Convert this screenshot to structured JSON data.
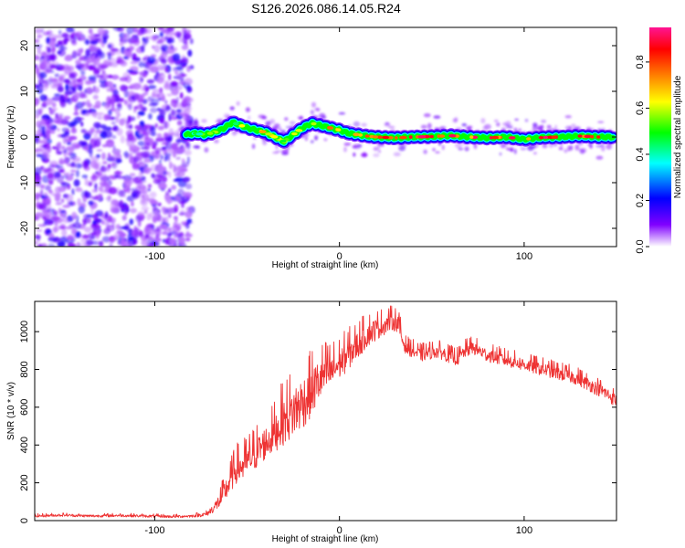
{
  "figure": {
    "title": "S126.2026.086.14.05.R24"
  },
  "chart_data": [
    {
      "type": "heatmap",
      "title": "",
      "xlabel": "Height of straight line (km)",
      "ylabel": "Frequency (Hz)",
      "xlim": [
        -165,
        150
      ],
      "ylim": [
        -24,
        24
      ],
      "xticks": [
        -100,
        0,
        100
      ],
      "yticks": [
        -20,
        -10,
        0,
        10,
        20
      ],
      "colorbar": {
        "label": "Normalized spectral amplitude",
        "range": [
          0.0,
          0.95
        ],
        "ticks": [
          0.0,
          0.2,
          0.4,
          0.6,
          0.8
        ],
        "colormap": [
          "#ffffff",
          "#8000ff",
          "#0000ff",
          "#00ffff",
          "#00ff00",
          "#ffff00",
          "#ff8000",
          "#ff0000",
          "#ff1493"
        ]
      },
      "noise_region_x": [
        -165,
        -80
      ],
      "ridge": {
        "x": [
          -83,
          -78,
          -73,
          -68,
          -63,
          -58,
          -55,
          -50,
          -45,
          -40,
          -35,
          -30,
          -25,
          -20,
          -15,
          -10,
          -5,
          0,
          5,
          10,
          15,
          20,
          30,
          40,
          50,
          60,
          70,
          80,
          90,
          100,
          110,
          120,
          130,
          140,
          148
        ],
        "freq_hz": [
          0.5,
          0.8,
          0.5,
          1.0,
          1.8,
          3.2,
          2.8,
          2.0,
          1.5,
          1.0,
          0.0,
          -1.0,
          0.5,
          2.0,
          3.0,
          2.5,
          2.0,
          1.5,
          0.8,
          0.5,
          0.2,
          0.0,
          -0.2,
          0.0,
          0.1,
          0.3,
          0.0,
          -0.2,
          0.0,
          -0.5,
          -0.1,
          0.0,
          0.2,
          0.0,
          0.0
        ],
        "amplitude": [
          0.4,
          0.5,
          0.55,
          0.6,
          0.6,
          0.55,
          0.6,
          0.65,
          0.65,
          0.7,
          0.6,
          0.6,
          0.65,
          0.7,
          0.7,
          0.75,
          0.75,
          0.8,
          0.8,
          0.8,
          0.85,
          0.85,
          0.85,
          0.9,
          0.9,
          0.9,
          0.9,
          0.9,
          0.92,
          0.92,
          0.92,
          0.92,
          0.92,
          0.9,
          0.9
        ]
      },
      "grid": false
    },
    {
      "type": "line",
      "title": "",
      "xlabel": "Height of straight line (km)",
      "ylabel": "SNR (10 * v/v)",
      "xlim": [
        -165,
        150
      ],
      "ylim": [
        0,
        1160
      ],
      "xticks": [
        -100,
        0,
        100
      ],
      "yticks": [
        0,
        200,
        400,
        600,
        800,
        1000
      ],
      "color": "#ee3333",
      "grid": false,
      "series": [
        {
          "x": [
            -165,
            -150,
            -135,
            -120,
            -105,
            -90,
            -80,
            -72,
            -68,
            -64,
            -60,
            -56,
            -52,
            -48,
            -44,
            -40,
            -36,
            -32,
            -28,
            -24,
            -20,
            -16,
            -12,
            -8,
            -4,
            0,
            4,
            8,
            12,
            16,
            20,
            24,
            28,
            32,
            34,
            36,
            40,
            44,
            48,
            52,
            56,
            60,
            64,
            68,
            72,
            76,
            80,
            84,
            88,
            92,
            96,
            100,
            104,
            108,
            112,
            116,
            120,
            124,
            128,
            132,
            136,
            140,
            144,
            148,
            150
          ],
          "values": [
            25,
            30,
            25,
            28,
            25,
            22,
            25,
            35,
            70,
            120,
            200,
            280,
            300,
            340,
            380,
            420,
            460,
            520,
            560,
            600,
            640,
            680,
            740,
            780,
            800,
            840,
            880,
            920,
            960,
            1000,
            1020,
            1040,
            1060,
            1050,
            960,
            920,
            900,
            880,
            890,
            900,
            890,
            870,
            860,
            900,
            920,
            900,
            880,
            870,
            860,
            850,
            840,
            830,
            820,
            810,
            800,
            790,
            780,
            770,
            760,
            740,
            720,
            700,
            680,
            650,
            640
          ],
          "spread": [
            12,
            12,
            12,
            12,
            12,
            12,
            12,
            20,
            40,
            80,
            110,
            130,
            140,
            150,
            150,
            150,
            160,
            200,
            220,
            240,
            240,
            220,
            200,
            180,
            160,
            140,
            140,
            130,
            120,
            110,
            100,
            90,
            80,
            80,
            70,
            60,
            60,
            60,
            60,
            60,
            60,
            60,
            60,
            60,
            60,
            60,
            60,
            60,
            60,
            60,
            60,
            60,
            60,
            60,
            60,
            60,
            60,
            60,
            60,
            60,
            60,
            60,
            60,
            60,
            60
          ]
        }
      ]
    }
  ]
}
